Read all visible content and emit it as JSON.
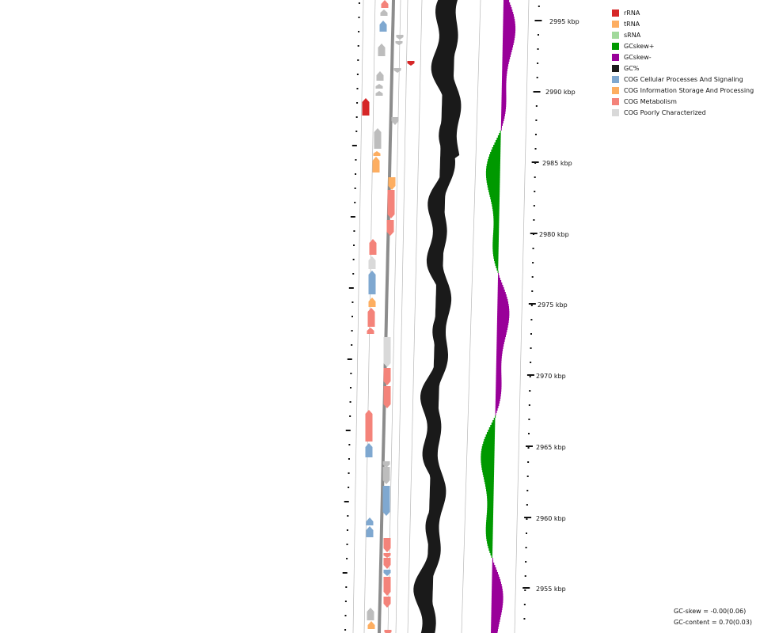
{
  "map": {
    "axis_ticks": [
      "2995 kbp",
      "2990 kbp",
      "2985 kbp",
      "2980 kbp",
      "2975 kbp",
      "2970 kbp",
      "2965 kbp",
      "2960 kbp",
      "2955 kbp"
    ]
  },
  "legend": {
    "items": [
      {
        "label": "rRNA",
        "color": "#d62728"
      },
      {
        "label": "tRNA",
        "color": "#fdae61"
      },
      {
        "label": "sRNA",
        "color": "#a1d99b"
      },
      {
        "label": "GCskew+",
        "color": "#009900"
      },
      {
        "label": "GCskew-",
        "color": "#990099"
      },
      {
        "label": "GC%",
        "color": "#1a1a1a"
      },
      {
        "label": "COG Cellular Processes And Signaling",
        "color": "#7fa8d0"
      },
      {
        "label": "COG Information Storage And Processing",
        "color": "#fdae61"
      },
      {
        "label": "COG Metabolism",
        "color": "#f4837a"
      },
      {
        "label": "COG Poorly Characterized",
        "color": "#d9d9d9"
      }
    ]
  },
  "stats": {
    "gc_skew": "GC-skew = -0.00(0.06)",
    "gc_content": "GC-content = 0.70(0.03)"
  }
}
